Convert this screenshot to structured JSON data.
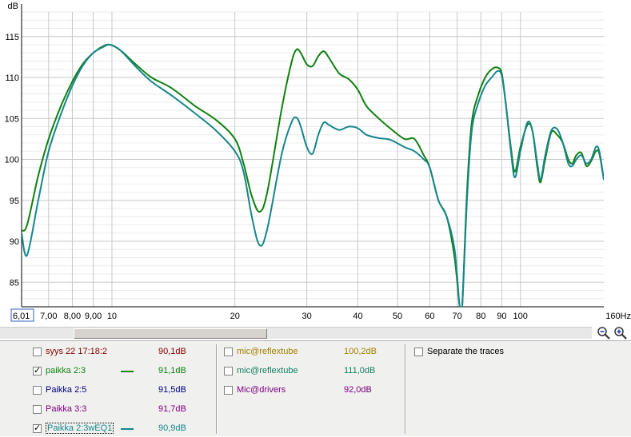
{
  "chart_data": {
    "type": "line",
    "ylabel": "dB",
    "xunit": "Hz",
    "xscale": "log",
    "xlim": [
      6.01,
      160
    ],
    "ylim": [
      82,
      118
    ],
    "yticks": [
      "115",
      "110",
      "105",
      "100",
      "95",
      "90",
      "85"
    ],
    "xticks": [
      {
        "v": 6.01,
        "label": "6,01"
      },
      {
        "v": 7,
        "label": "7,00"
      },
      {
        "v": 8,
        "label": "8,00"
      },
      {
        "v": 9,
        "label": "9,00"
      },
      {
        "v": 10,
        "label": "10"
      },
      {
        "v": 20,
        "label": "20"
      },
      {
        "v": 30,
        "label": "30"
      },
      {
        "v": 40,
        "label": "40"
      },
      {
        "v": 50,
        "label": "50"
      },
      {
        "v": 60,
        "label": "60"
      },
      {
        "v": 70,
        "label": "70"
      },
      {
        "v": 80,
        "label": "80"
      },
      {
        "v": 90,
        "label": "90"
      },
      {
        "v": 100,
        "label": "100"
      },
      {
        "v": 160,
        "label": "160Hz"
      }
    ],
    "series": [
      {
        "name": "paikka 2:3",
        "color": "#108010",
        "points": [
          [
            6.01,
            91.3
          ],
          [
            6.2,
            92
          ],
          [
            6.6,
            98
          ],
          [
            7,
            102.5
          ],
          [
            7.5,
            106.5
          ],
          [
            8,
            109.5
          ],
          [
            8.5,
            111.7
          ],
          [
            9,
            113
          ],
          [
            9.5,
            113.8
          ],
          [
            9.9,
            114
          ],
          [
            10.5,
            113.3
          ],
          [
            11.5,
            111.5
          ],
          [
            12.5,
            110
          ],
          [
            14,
            108.7
          ],
          [
            16,
            106.5
          ],
          [
            18,
            104.8
          ],
          [
            20,
            102.5
          ],
          [
            21,
            99.5
          ],
          [
            22,
            95.5
          ],
          [
            23,
            93.6
          ],
          [
            24,
            96
          ],
          [
            26,
            106
          ],
          [
            27.5,
            111.8
          ],
          [
            28.3,
            113.4
          ],
          [
            29,
            113
          ],
          [
            30,
            111.6
          ],
          [
            31,
            111.4
          ],
          [
            32,
            112.6
          ],
          [
            33,
            113.2
          ],
          [
            34,
            112.4
          ],
          [
            36,
            110.5
          ],
          [
            38,
            109.8
          ],
          [
            40,
            108.5
          ],
          [
            42,
            106.5
          ],
          [
            45,
            105
          ],
          [
            48,
            103.8
          ],
          [
            52,
            102.5
          ],
          [
            55,
            102.5
          ],
          [
            58,
            100.5
          ],
          [
            60,
            99
          ],
          [
            63,
            95
          ],
          [
            66,
            93
          ],
          [
            69,
            88
          ],
          [
            71,
            82
          ],
          [
            72,
            82
          ],
          [
            74,
            96
          ],
          [
            76,
            104.5
          ],
          [
            79,
            108
          ],
          [
            82,
            110
          ],
          [
            85,
            111
          ],
          [
            88,
            111.2
          ],
          [
            90,
            110.5
          ],
          [
            92,
            107
          ],
          [
            95,
            101
          ],
          [
            97,
            98.5
          ],
          [
            100,
            101.5
          ],
          [
            104,
            104.2
          ],
          [
            107,
            103.5
          ],
          [
            110,
            99
          ],
          [
            112,
            97.2
          ],
          [
            115,
            100
          ],
          [
            119,
            103.3
          ],
          [
            123,
            103
          ],
          [
            127,
            102
          ],
          [
            131,
            100
          ],
          [
            134,
            99.5
          ],
          [
            137,
            100.5
          ],
          [
            141,
            100.8
          ],
          [
            145,
            99.2
          ],
          [
            149,
            99.8
          ],
          [
            153,
            101
          ],
          [
            156,
            100.7
          ],
          [
            160,
            97.5
          ]
        ]
      },
      {
        "name": "Paikka 2:3wEQ1",
        "color": "#16868c",
        "points": [
          [
            6.01,
            91
          ],
          [
            6.2,
            88.3
          ],
          [
            6.6,
            95
          ],
          [
            7,
            101
          ],
          [
            7.5,
            105.5
          ],
          [
            8,
            109
          ],
          [
            8.5,
            111.5
          ],
          [
            9,
            113
          ],
          [
            9.5,
            113.7
          ],
          [
            9.9,
            114
          ],
          [
            10.5,
            113.3
          ],
          [
            11.5,
            111.2
          ],
          [
            12.5,
            109.5
          ],
          [
            14,
            107.8
          ],
          [
            16,
            105.6
          ],
          [
            18,
            103.5
          ],
          [
            20,
            101
          ],
          [
            21,
            98.5
          ],
          [
            22,
            93
          ],
          [
            23,
            89.5
          ],
          [
            24,
            91.5
          ],
          [
            26,
            100.5
          ],
          [
            27.5,
            104.5
          ],
          [
            28.3,
            105.1
          ],
          [
            29,
            104
          ],
          [
            30,
            101.5
          ],
          [
            31,
            100.7
          ],
          [
            32,
            103
          ],
          [
            33,
            104.5
          ],
          [
            34,
            104.2
          ],
          [
            36,
            103.6
          ],
          [
            38,
            104
          ],
          [
            40,
            103.8
          ],
          [
            42,
            103
          ],
          [
            45,
            102.6
          ],
          [
            48,
            102.4
          ],
          [
            52,
            101.5
          ],
          [
            55,
            101
          ],
          [
            58,
            100
          ],
          [
            60,
            99
          ],
          [
            63,
            95
          ],
          [
            66,
            93
          ],
          [
            69,
            89
          ],
          [
            71,
            82
          ],
          [
            72,
            82
          ],
          [
            74,
            95
          ],
          [
            76,
            103.5
          ],
          [
            79,
            107
          ],
          [
            82,
            109
          ],
          [
            85,
            110
          ],
          [
            88,
            110.8
          ],
          [
            90,
            110.2
          ],
          [
            92,
            107
          ],
          [
            95,
            100.5
          ],
          [
            97,
            97.8
          ],
          [
            100,
            101
          ],
          [
            104,
            104.5
          ],
          [
            107,
            103.5
          ],
          [
            110,
            99.5
          ],
          [
            112,
            97.5
          ],
          [
            115,
            100.5
          ],
          [
            119,
            103.5
          ],
          [
            123,
            103.7
          ],
          [
            127,
            102
          ],
          [
            131,
            99.5
          ],
          [
            134,
            99.2
          ],
          [
            137,
            100
          ],
          [
            141,
            100.5
          ],
          [
            145,
            99.5
          ],
          [
            149,
            100
          ],
          [
            153,
            101.5
          ],
          [
            156,
            101
          ],
          [
            160,
            97.5
          ]
        ]
      }
    ]
  },
  "legend": {
    "col1": [
      {
        "checked": false,
        "name": "syys 22 17:18:2",
        "value": "90,1dB",
        "color": "#800000",
        "show_line": false
      },
      {
        "checked": true,
        "name": "paikka 2:3",
        "value": "91,1dB",
        "color": "#108010",
        "show_line": true
      },
      {
        "checked": false,
        "name": "Paikka 2:5",
        "value": "91,5dB",
        "color": "#000080",
        "show_line": false
      },
      {
        "checked": false,
        "name": "Paikka 3:3",
        "value": "91,7dB",
        "color": "#800080",
        "show_line": false
      },
      {
        "checked": true,
        "name": "Paikka 2:3wEQ1",
        "value": "90,9dB",
        "color": "#16868c",
        "show_line": true,
        "selected": true
      }
    ],
    "col2": [
      {
        "checked": false,
        "name": "mic@reflextube",
        "value": "100,2dB",
        "color": "#a08000"
      },
      {
        "checked": false,
        "name": "mic@reflextube",
        "value": "111,0dB",
        "color": "#108060"
      },
      {
        "checked": false,
        "name": "Mic@drivers",
        "value": "92,0dB",
        "color": "#800080"
      }
    ],
    "separate_traces": {
      "checked": false,
      "label": "Separate the traces"
    }
  },
  "icons": {
    "zoom_out": "zoom-out-icon",
    "zoom_in": "zoom-in-icon"
  }
}
